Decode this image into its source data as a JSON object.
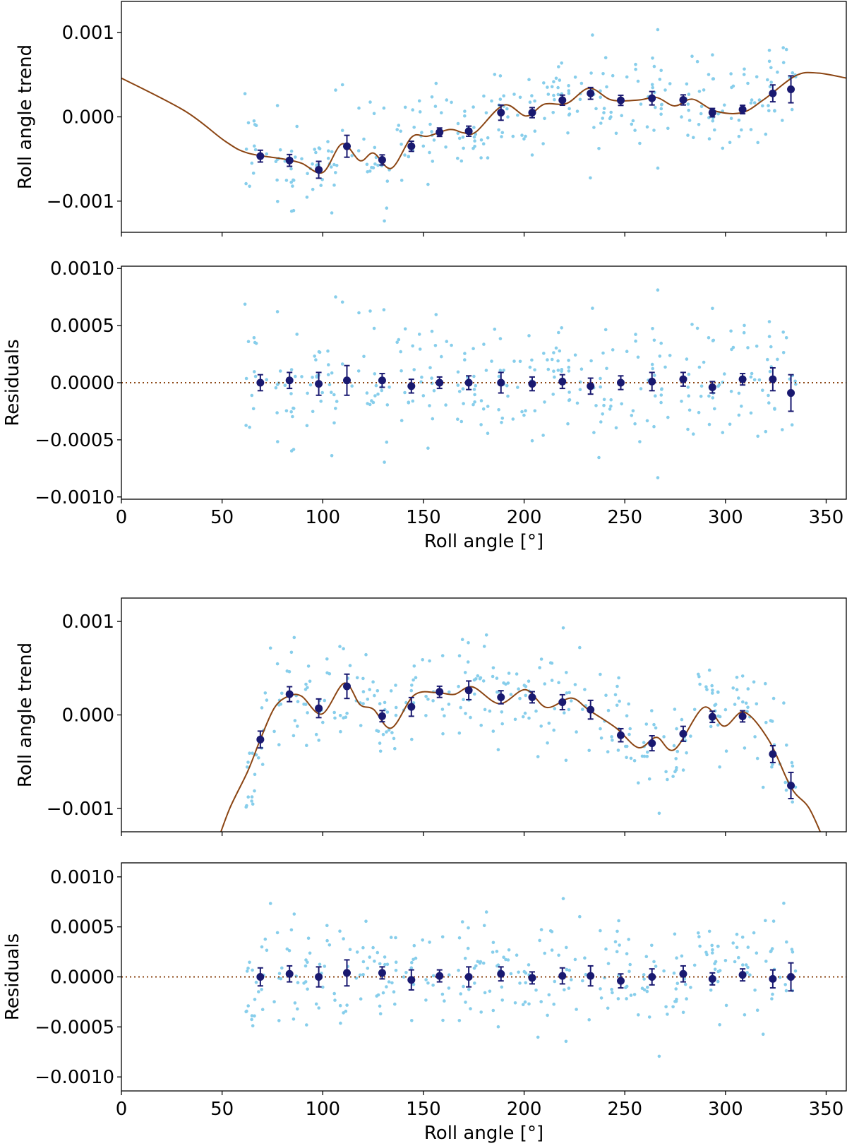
{
  "colors": {
    "scatter": "#87ceeb",
    "binned": "#191970",
    "model": "#8b4513",
    "axis": "#000000"
  },
  "chart_data": [
    {
      "panel": "top-trend",
      "type": "scatter",
      "ylabel": "Roll angle trend",
      "xlabel": "",
      "xlim": [
        0,
        360
      ],
      "ylim": [
        -0.00137,
        0.00137
      ],
      "xticks": [
        {
          "v": 0,
          "label": ""
        },
        {
          "v": 50,
          "label": ""
        },
        {
          "v": 100,
          "label": ""
        },
        {
          "v": 150,
          "label": ""
        },
        {
          "v": 200,
          "label": ""
        },
        {
          "v": 250,
          "label": ""
        },
        {
          "v": 300,
          "label": ""
        },
        {
          "v": 350,
          "label": ""
        }
      ],
      "yticks": [
        {
          "v": 0.001,
          "label": "0.001"
        },
        {
          "v": 0,
          "label": "0.000"
        },
        {
          "v": -0.001,
          "label": "−0.001"
        }
      ],
      "model_curve": {
        "x": [
          0,
          31.5,
          51.6,
          62.8,
          80.6,
          89.5,
          100,
          109.6,
          118.5,
          125.2,
          134.1,
          144.2,
          152,
          163,
          170,
          176,
          189.9,
          201.1,
          210,
          221.2,
          232.3,
          243.5,
          256.8,
          265.8,
          274.7,
          283.6,
          294.8,
          308.2,
          319.3,
          335,
          346,
          360
        ],
        "y": [
          0.00046,
          7e-05,
          -0.00029,
          -0.00043,
          -0.0005,
          -0.00055,
          -0.00066,
          -0.00032,
          -0.00052,
          -0.00043,
          -0.00061,
          -0.00024,
          -0.00023,
          -0.00015,
          -0.00019,
          -0.00018,
          0.00014,
          1e-05,
          0.00015,
          0.00016,
          0.00034,
          0.0002,
          0.0002,
          0.00023,
          0.00013,
          0.00021,
          7e-05,
          5e-05,
          0.00021,
          0.00049,
          0.00052,
          0.00046
        ]
      },
      "binned": {
        "x": [
          69,
          83.5,
          98,
          112,
          129.5,
          144,
          158,
          172.5,
          188.5,
          204,
          219,
          233,
          248,
          263.5,
          279,
          293.5,
          308.5,
          323.5,
          332.5
        ],
        "y": [
          -0.000466,
          -0.000517,
          -0.000628,
          -0.000349,
          -0.000511,
          -0.000349,
          -0.000182,
          -0.00017,
          5e-05,
          5e-05,
          0.000198,
          0.000279,
          0.000196,
          0.000221,
          0.000201,
          5e-05,
          8.7e-05,
          0.000279,
          0.000327
        ],
        "yerr": [
          7e-05,
          7e-05,
          0.0001,
          0.00013,
          6e-05,
          6e-05,
          5e-05,
          6e-05,
          9e-05,
          6e-05,
          6e-05,
          7e-05,
          6e-05,
          8e-05,
          6e-05,
          5e-05,
          5e-05,
          0.0001,
          0.00016
        ]
      },
      "scatter": {
        "count": 320,
        "x_range": [
          60,
          335
        ],
        "sigma": 0.00028,
        "seed": 11
      }
    },
    {
      "panel": "top-residuals",
      "type": "scatter",
      "ylabel": "Residuals",
      "xlabel": "Roll angle [°]",
      "xlim": [
        0,
        360
      ],
      "ylim": [
        -0.00102,
        0.00102
      ],
      "xticks": [
        {
          "v": 0,
          "label": "0"
        },
        {
          "v": 50,
          "label": "50"
        },
        {
          "v": 100,
          "label": "100"
        },
        {
          "v": 150,
          "label": "150"
        },
        {
          "v": 200,
          "label": "200"
        },
        {
          "v": 250,
          "label": "250"
        },
        {
          "v": 300,
          "label": "300"
        },
        {
          "v": 350,
          "label": "350"
        }
      ],
      "yticks": [
        {
          "v": 0.001,
          "label": "0.0010"
        },
        {
          "v": 0.0005,
          "label": "0.0005"
        },
        {
          "v": 0,
          "label": "0.0000"
        },
        {
          "v": -0.0005,
          "label": "−0.0005"
        },
        {
          "v": -0.001,
          "label": "−0.0010"
        }
      ],
      "reference_line": 0,
      "residuals_of": 0,
      "binned": {
        "x": [
          69,
          83.5,
          98,
          112,
          129.5,
          144,
          158,
          172.5,
          188.5,
          204,
          219,
          233,
          248,
          263.5,
          279,
          293.5,
          308.5,
          323.5,
          332.5
        ],
        "y": [
          0,
          2e-05,
          -1e-05,
          2e-05,
          2e-05,
          -3e-05,
          0,
          0,
          0,
          -1e-05,
          1e-05,
          -3e-05,
          0,
          1e-05,
          3e-05,
          -4e-05,
          3e-05,
          3e-05,
          -9e-05
        ],
        "yerr": [
          7e-05,
          7e-05,
          0.0001,
          0.00013,
          6e-05,
          6e-05,
          5e-05,
          6e-05,
          9e-05,
          6e-05,
          6e-05,
          7e-05,
          6e-05,
          8e-05,
          6e-05,
          5e-05,
          5e-05,
          0.0001,
          0.00016
        ]
      }
    },
    {
      "panel": "bottom-trend",
      "type": "scatter",
      "ylabel": "Roll angle trend",
      "xlabel": "",
      "xlim": [
        0,
        360
      ],
      "ylim": [
        -0.00125,
        0.00125
      ],
      "xticks": [
        {
          "v": 0,
          "label": ""
        },
        {
          "v": 50,
          "label": ""
        },
        {
          "v": 100,
          "label": ""
        },
        {
          "v": 150,
          "label": ""
        },
        {
          "v": 200,
          "label": ""
        },
        {
          "v": 250,
          "label": ""
        },
        {
          "v": 300,
          "label": ""
        },
        {
          "v": 350,
          "label": ""
        }
      ],
      "yticks": [
        {
          "v": 0.001,
          "label": "0.001"
        },
        {
          "v": 0,
          "label": "0.000"
        },
        {
          "v": -0.001,
          "label": "−0.001"
        }
      ],
      "model_curve": {
        "x": [
          47,
          53.8,
          62.8,
          69.4,
          76.1,
          82.9,
          89.5,
          99.6,
          110.7,
          118.5,
          125.2,
          134.1,
          145.3,
          156.4,
          165.4,
          174.3,
          187.7,
          200.6,
          211.1,
          223.4,
          232.3,
          245.7,
          256.8,
          265.8,
          274.7,
          289.2,
          299.2,
          309.3,
          321.5,
          332.7,
          341.6,
          350
        ],
        "y": [
          -0.0014,
          -0.001,
          -0.0006,
          -0.00024,
          8e-05,
          0.0002,
          0.0002,
          1e-05,
          0.00034,
          0.00011,
          6e-05,
          -0.00014,
          0.00021,
          0.00024,
          0.00022,
          0.0003,
          0.00012,
          0.00027,
          8e-05,
          0.00018,
          5e-05,
          -0.00014,
          -0.00035,
          -0.00024,
          -0.00037,
          8e-05,
          -0.00012,
          3e-05,
          -0.00027,
          -0.00078,
          -0.001,
          -0.0014
        ]
      },
      "binned": {
        "x": [
          69,
          83.5,
          98,
          112,
          129.5,
          144,
          158,
          172.5,
          188.5,
          204,
          219,
          233,
          248,
          263.5,
          279,
          293.5,
          308.5,
          323.5,
          332.5
        ],
        "y": [
          -0.000263,
          0.000222,
          7.1e-05,
          0.000306,
          -1.3e-05,
          8.6e-05,
          0.000247,
          0.000263,
          0.000189,
          0.000189,
          0.000136,
          5.6e-05,
          -0.000217,
          -0.000303,
          -0.000202,
          -2e-05,
          -1.5e-05,
          -0.000419,
          -0.000755
        ],
        "yerr": [
          9e-05,
          8e-05,
          0.0001,
          0.00013,
          6e-05,
          0.0001,
          6e-05,
          0.0001,
          7e-05,
          6e-05,
          8e-05,
          0.0001,
          7e-05,
          8e-05,
          8e-05,
          6e-05,
          6e-05,
          9e-05,
          0.00014
        ]
      },
      "scatter": {
        "count": 320,
        "x_range": [
          60,
          335
        ],
        "sigma": 0.00027,
        "seed": 23
      }
    },
    {
      "panel": "bottom-residuals",
      "type": "scatter",
      "ylabel": "Residuals",
      "xlabel": "Roll angle [°]",
      "xlim": [
        0,
        360
      ],
      "ylim": [
        -0.00114,
        0.00114
      ],
      "xticks": [
        {
          "v": 0,
          "label": "0"
        },
        {
          "v": 50,
          "label": "50"
        },
        {
          "v": 100,
          "label": "100"
        },
        {
          "v": 150,
          "label": "150"
        },
        {
          "v": 200,
          "label": "200"
        },
        {
          "v": 250,
          "label": "250"
        },
        {
          "v": 300,
          "label": "300"
        },
        {
          "v": 350,
          "label": "350"
        }
      ],
      "yticks": [
        {
          "v": 0.001,
          "label": "0.0010"
        },
        {
          "v": 0.0005,
          "label": "0.0005"
        },
        {
          "v": 0,
          "label": "0.0000"
        },
        {
          "v": -0.0005,
          "label": "−0.0005"
        },
        {
          "v": -0.001,
          "label": "−0.0010"
        }
      ],
      "reference_line": 0,
      "residuals_of": 2,
      "binned": {
        "x": [
          69,
          83.5,
          98,
          112,
          129.5,
          144,
          158,
          172.5,
          188.5,
          204,
          219,
          233,
          248,
          263.5,
          279,
          293.5,
          308.5,
          323.5,
          332.5
        ],
        "y": [
          0,
          3e-05,
          0,
          4e-05,
          4e-05,
          -3e-05,
          1e-05,
          0,
          3e-05,
          -1e-05,
          1e-05,
          1e-05,
          -4e-05,
          0,
          3e-05,
          -2e-05,
          2e-05,
          -2e-05,
          0
        ],
        "yerr": [
          9e-05,
          8e-05,
          0.0001,
          0.00013,
          6e-05,
          0.0001,
          6e-05,
          0.0001,
          7e-05,
          6e-05,
          8e-05,
          0.0001,
          7e-05,
          8e-05,
          8e-05,
          6e-05,
          6e-05,
          9e-05,
          0.00014
        ]
      }
    }
  ]
}
